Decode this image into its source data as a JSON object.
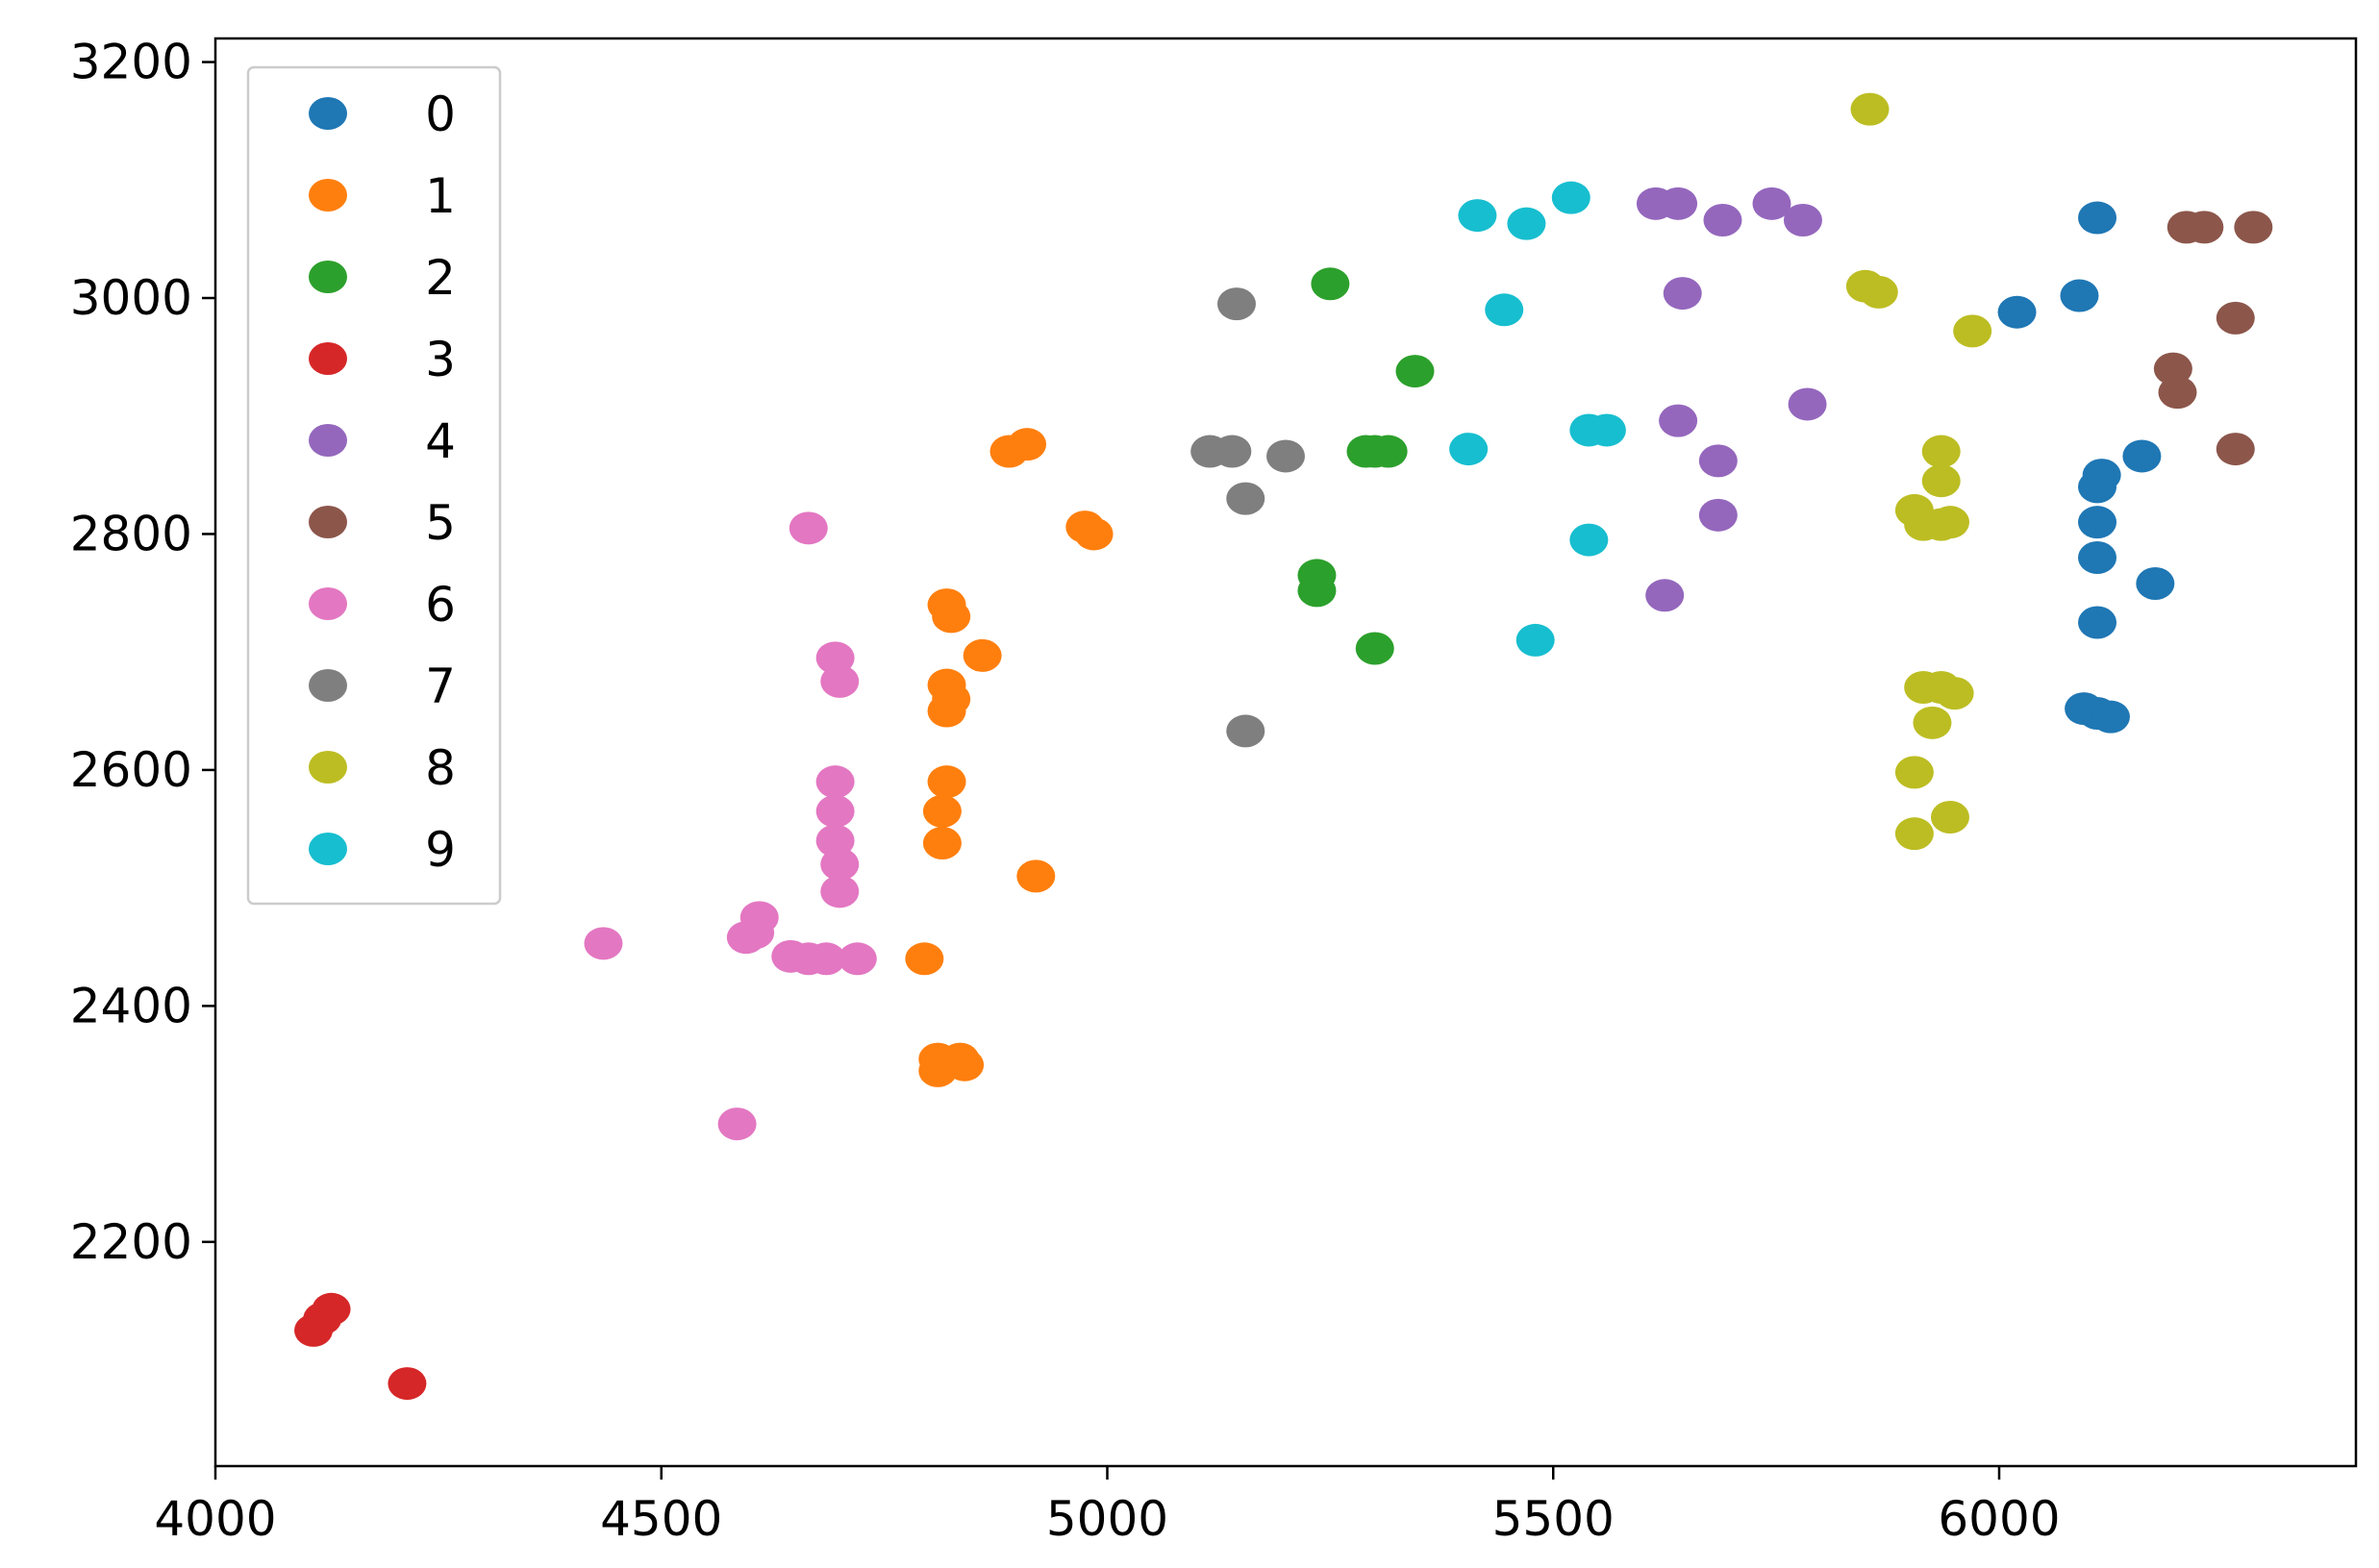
{
  "chart_data": {
    "type": "scatter",
    "title": "",
    "xlabel": "",
    "ylabel": "",
    "xlim": [
      4000,
      6400
    ],
    "ylim": [
      2010,
      3220
    ],
    "x_ticks": [
      4000,
      4500,
      5000,
      5500,
      6000
    ],
    "y_ticks": [
      2200,
      2400,
      2600,
      2800,
      3000,
      3200
    ],
    "x_tick_labels": [
      "4000",
      "4500",
      "5000",
      "5500",
      "6000"
    ],
    "y_tick_labels": [
      "2200",
      "2400",
      "2600",
      "2800",
      "3000",
      "3200"
    ],
    "grid": false,
    "legend": {
      "position": "upper-left"
    },
    "series": [
      {
        "name": "0",
        "color": "#1f77b4",
        "points": [
          [
            6110,
            3068
          ],
          [
            6090,
            3002
          ],
          [
            6020,
            2988
          ],
          [
            6115,
            2850
          ],
          [
            6110,
            2840
          ],
          [
            6160,
            2866
          ],
          [
            6110,
            2810
          ],
          [
            6110,
            2780
          ],
          [
            6175,
            2758
          ],
          [
            6110,
            2725
          ],
          [
            6095,
            2652
          ],
          [
            6110,
            2648
          ],
          [
            6125,
            2645
          ]
        ]
      },
      {
        "name": "1",
        "color": "#ff7f0e",
        "points": [
          [
            4890,
            2870
          ],
          [
            4910,
            2876
          ],
          [
            4975,
            2806
          ],
          [
            4985,
            2800
          ],
          [
            4820,
            2740
          ],
          [
            4825,
            2730
          ],
          [
            4860,
            2697
          ],
          [
            4820,
            2672
          ],
          [
            4825,
            2660
          ],
          [
            4820,
            2650
          ],
          [
            4820,
            2590
          ],
          [
            4815,
            2565
          ],
          [
            4815,
            2538
          ],
          [
            4920,
            2510
          ],
          [
            4795,
            2440
          ],
          [
            4810,
            2355
          ],
          [
            4835,
            2355
          ],
          [
            4810,
            2345
          ],
          [
            4840,
            2350
          ]
        ]
      },
      {
        "name": "2",
        "color": "#2ca02c",
        "points": [
          [
            5250,
            3012
          ],
          [
            5345,
            2938
          ],
          [
            5290,
            2870
          ],
          [
            5300,
            2870
          ],
          [
            5315,
            2870
          ],
          [
            5235,
            2765
          ],
          [
            5235,
            2752
          ],
          [
            5300,
            2703
          ]
        ]
      },
      {
        "name": "3",
        "color": "#d62728",
        "points": [
          [
            4130,
            2143
          ],
          [
            4120,
            2135
          ],
          [
            4110,
            2125
          ],
          [
            4215,
            2080
          ]
        ]
      },
      {
        "name": "4",
        "color": "#9467bd",
        "points": [
          [
            5615,
            3080
          ],
          [
            5640,
            3080
          ],
          [
            5690,
            3066
          ],
          [
            5745,
            3080
          ],
          [
            5780,
            3066
          ],
          [
            5645,
            3004
          ],
          [
            5785,
            2910
          ],
          [
            5640,
            2896
          ],
          [
            5685,
            2862
          ],
          [
            5685,
            2816
          ],
          [
            5625,
            2748
          ]
        ]
      },
      {
        "name": "5",
        "color": "#8c564b",
        "points": [
          [
            6210,
            3060
          ],
          [
            6230,
            3060
          ],
          [
            6285,
            3060
          ],
          [
            6265,
            2983
          ],
          [
            6195,
            2940
          ],
          [
            6200,
            2920
          ],
          [
            6265,
            2872
          ]
        ]
      },
      {
        "name": "6",
        "color": "#e377c2",
        "points": [
          [
            4665,
            2805
          ],
          [
            4695,
            2695
          ],
          [
            4700,
            2675
          ],
          [
            4695,
            2590
          ],
          [
            4695,
            2565
          ],
          [
            4695,
            2540
          ],
          [
            4700,
            2520
          ],
          [
            4700,
            2497
          ],
          [
            4610,
            2475
          ],
          [
            4595,
            2458
          ],
          [
            4605,
            2462
          ],
          [
            4435,
            2453
          ],
          [
            4645,
            2442
          ],
          [
            4665,
            2440
          ],
          [
            4685,
            2440
          ],
          [
            4720,
            2440
          ],
          [
            4585,
            2300
          ]
        ]
      },
      {
        "name": "7",
        "color": "#7f7f7f",
        "points": [
          [
            5145,
            2995
          ],
          [
            5115,
            2870
          ],
          [
            5140,
            2870
          ],
          [
            5200,
            2866
          ],
          [
            5155,
            2830
          ],
          [
            5155,
            2633
          ]
        ]
      },
      {
        "name": "8",
        "color": "#bcbd22",
        "points": [
          [
            5855,
            3160
          ],
          [
            5850,
            3010
          ],
          [
            5865,
            3005
          ],
          [
            5970,
            2972
          ],
          [
            5935,
            2870
          ],
          [
            5935,
            2845
          ],
          [
            5905,
            2820
          ],
          [
            5915,
            2808
          ],
          [
            5935,
            2808
          ],
          [
            5945,
            2810
          ],
          [
            5915,
            2670
          ],
          [
            5935,
            2670
          ],
          [
            5950,
            2665
          ],
          [
            5925,
            2640
          ],
          [
            5905,
            2598
          ],
          [
            5945,
            2560
          ],
          [
            5905,
            2546
          ]
        ]
      },
      {
        "name": "9",
        "color": "#17becf",
        "points": [
          [
            5520,
            3085
          ],
          [
            5415,
            3070
          ],
          [
            5470,
            3063
          ],
          [
            5445,
            2990
          ],
          [
            5405,
            2872
          ],
          [
            5540,
            2888
          ],
          [
            5560,
            2888
          ],
          [
            5540,
            2795
          ],
          [
            5480,
            2710
          ]
        ]
      }
    ]
  }
}
